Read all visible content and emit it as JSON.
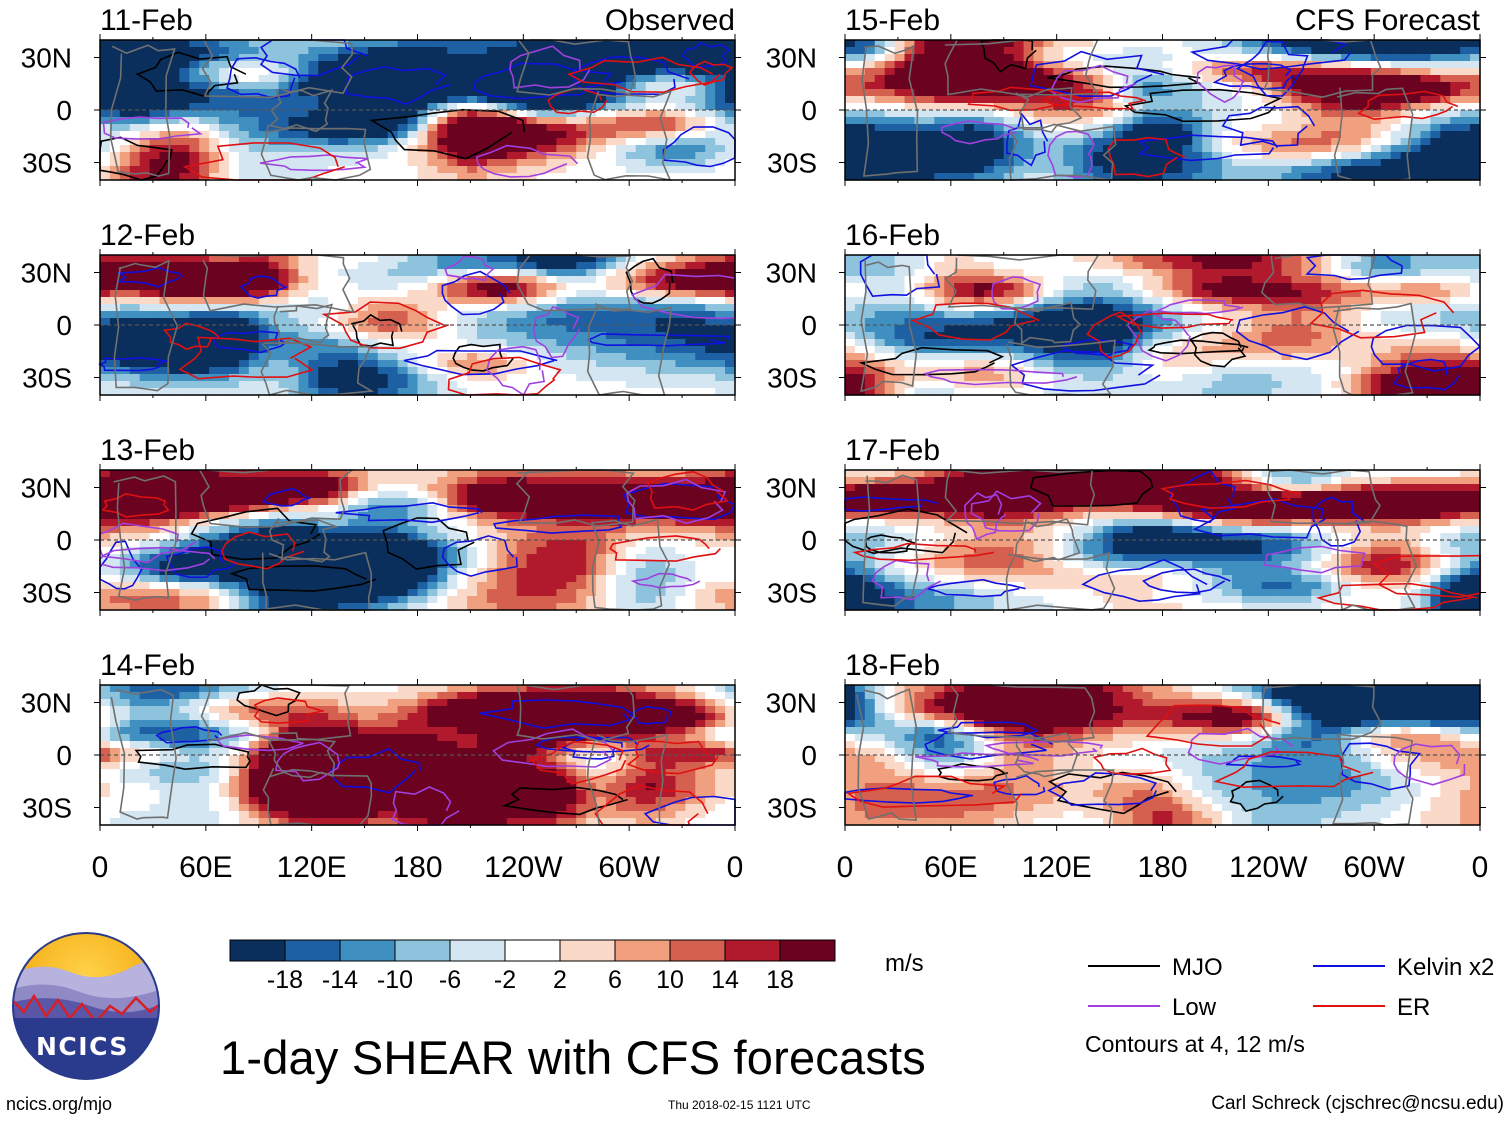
{
  "chart_data": {
    "type": "heatmap",
    "title": "1-day SHEAR with CFS forecasts",
    "variable": "SHEAR",
    "units": "m/s",
    "x_ticks": [
      "0",
      "60E",
      "120E",
      "180",
      "120W",
      "60W",
      "0"
    ],
    "x_range_deg": [
      0,
      360
    ],
    "y_ticks": [
      "30N",
      "0",
      "30S"
    ],
    "y_range_deg": [
      -40,
      40
    ],
    "colorbar": {
      "labels": [
        "-18",
        "-14",
        "-10",
        "-6",
        "-2",
        "2",
        "6",
        "10",
        "14",
        "18"
      ],
      "levels": [
        -18,
        -14,
        -10,
        -6,
        -2,
        2,
        6,
        10,
        14,
        18
      ],
      "colors": [
        "#0a2f5c",
        "#1e60a4",
        "#3f8fc1",
        "#8ec3de",
        "#d3e6f1",
        "#ffffff",
        "#fbd9c8",
        "#f0a07e",
        "#d5604f",
        "#b1192d",
        "#6a0220"
      ]
    },
    "panels": [
      {
        "date": "11-Feb",
        "kind": "Observed",
        "header": "Observed",
        "column": "left",
        "row": 0
      },
      {
        "date": "12-Feb",
        "kind": "Observed",
        "header": "",
        "column": "left",
        "row": 1
      },
      {
        "date": "13-Feb",
        "kind": "Observed",
        "header": "",
        "column": "left",
        "row": 2
      },
      {
        "date": "14-Feb",
        "kind": "Observed",
        "header": "",
        "column": "left",
        "row": 3
      },
      {
        "date": "15-Feb",
        "kind": "CFS Forecast",
        "header": "CFS Forecast",
        "column": "right",
        "row": 0
      },
      {
        "date": "16-Feb",
        "kind": "CFS Forecast",
        "header": "",
        "column": "right",
        "row": 1
      },
      {
        "date": "17-Feb",
        "kind": "CFS Forecast",
        "header": "",
        "column": "right",
        "row": 2
      },
      {
        "date": "18-Feb",
        "kind": "CFS Forecast",
        "header": "",
        "column": "right",
        "row": 3
      }
    ],
    "legend": [
      {
        "name": "MJO",
        "color": "#000000"
      },
      {
        "name": "Kelvin x2",
        "color": "#1010e0"
      },
      {
        "name": "Low",
        "color": "#a040e0"
      },
      {
        "name": "ER",
        "color": "#e01010"
      }
    ],
    "contour_note": "Contours at 4, 12 m/s"
  },
  "logo": {
    "text": "NCICS"
  },
  "footer": {
    "site": "ncics.org/mjo",
    "timestamp": "Thu 2018-02-15 1121 UTC",
    "author": "Carl Schreck (cjschrec@ncsu.edu)"
  }
}
